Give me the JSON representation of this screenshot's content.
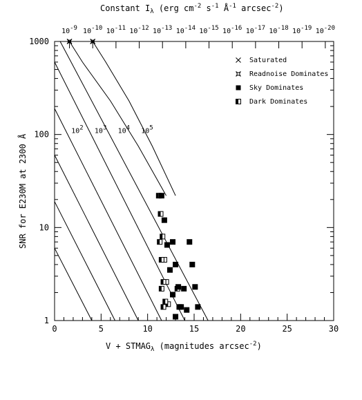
{
  "chart_data": {
    "type": "line",
    "title": "Constant I",
    "title_sub": "λ",
    "title_rest": " (erg cm",
    "title_exp1": "-2",
    "title_mid1": " s",
    "title_exp2": "-1",
    "title_mid2": " Å",
    "title_exp3": "-1",
    "title_end": " arcsec",
    "title_exp4": "-2",
    "title_close": ")",
    "xlabel": "V + STMAG",
    "xlabel_sub": "λ",
    "xlabel_rest": " (magnitudes arcsec",
    "xlabel_exp": "-2",
    "xlabel_close": ")",
    "ylabel": "SNR for E230M at 2300 Å",
    "xlim": [
      0,
      30
    ],
    "ylim": [
      1,
      1000
    ],
    "yscale": "log",
    "x_ticks": [
      "0",
      "5",
      "10",
      "15",
      "20",
      "25",
      "30"
    ],
    "y_ticks": [
      "1",
      "10",
      "100",
      "1000"
    ],
    "top_ticks": [
      {
        "base": "10",
        "exp": "-9"
      },
      {
        "base": "10",
        "exp": "-10"
      },
      {
        "base": "10",
        "exp": "-11"
      },
      {
        "base": "10",
        "exp": "-12"
      },
      {
        "base": "10",
        "exp": "-13"
      },
      {
        "base": "10",
        "exp": "-14"
      },
      {
        "base": "10",
        "exp": "-15"
      },
      {
        "base": "10",
        "exp": "-16"
      },
      {
        "base": "10",
        "exp": "-17"
      },
      {
        "base": "10",
        "exp": "-18"
      },
      {
        "base": "10",
        "exp": "-19"
      },
      {
        "base": "10",
        "exp": "-20"
      }
    ],
    "top_tick_mags": [
      1.6,
      4.1,
      6.6,
      9.1,
      11.6,
      14.1,
      16.6,
      19.1,
      21.6,
      24.1,
      26.6,
      29.1
    ],
    "curve_labels": [
      {
        "base": "10",
        "exp": "2",
        "x": 1.8,
        "y": 100
      },
      {
        "base": "10",
        "exp": "3",
        "x": 4.3,
        "y": 100
      },
      {
        "base": "10",
        "exp": "4",
        "x": 6.8,
        "y": 100
      },
      {
        "base": "10",
        "exp": "5",
        "x": 9.3,
        "y": 100
      }
    ],
    "series": [
      {
        "x": [
          0,
          4.0
        ],
        "y": [
          6.0,
          1.0
        ],
        "style": "line"
      },
      {
        "x": [
          0,
          6.5
        ],
        "y": [
          19,
          1.0
        ],
        "style": "line"
      },
      {
        "x": [
          0,
          9.0
        ],
        "y": [
          60,
          1.0
        ],
        "style": "line"
      },
      {
        "x": [
          0,
          11.5
        ],
        "y": [
          190,
          1.0
        ],
        "style": "line"
      },
      {
        "x": [
          0,
          14.0
        ],
        "y": [
          600,
          1.0
        ],
        "style": "line"
      },
      {
        "x": [
          0.6,
          16.5
        ],
        "y": [
          1000,
          1.0
        ],
        "style": "line"
      },
      {
        "x": [
          1.6,
          3.0,
          6.0,
          9.0,
          12.0
        ],
        "y": [
          1000,
          600,
          230,
          75,
          22
        ],
        "style": "line"
      },
      {
        "x": [
          4.1,
          5.5,
          8.0,
          10.5,
          13.0
        ],
        "y": [
          1000,
          600,
          230,
          75,
          22
        ],
        "style": "line"
      }
    ],
    "markers": {
      "saturated": [
        [
          1.6,
          1000
        ],
        [
          4.1,
          1000
        ]
      ],
      "readnoise": [
        [
          1.6,
          1000
        ],
        [
          4.1,
          1000
        ]
      ],
      "sky_dominates": [
        [
          11.5,
          22
        ],
        [
          11.8,
          12
        ],
        [
          12.1,
          6.5
        ],
        [
          12.4,
          3.5
        ],
        [
          12.7,
          1.9
        ],
        [
          13.0,
          1.1
        ],
        [
          12.7,
          7.0
        ],
        [
          13.0,
          4.0
        ],
        [
          13.3,
          2.3
        ],
        [
          13.6,
          1.4
        ],
        [
          13.9,
          2.2
        ],
        [
          14.2,
          1.3
        ],
        [
          14.5,
          7.0
        ],
        [
          14.8,
          4.0
        ],
        [
          15.1,
          2.3
        ],
        [
          15.4,
          1.4
        ]
      ],
      "dark_dominates": [
        [
          11.2,
          22
        ],
        [
          11.4,
          14
        ],
        [
          11.6,
          8.0
        ],
        [
          11.8,
          4.5
        ],
        [
          12.0,
          2.6
        ],
        [
          12.2,
          1.5
        ],
        [
          11.3,
          7.0
        ],
        [
          11.5,
          4.5
        ],
        [
          11.7,
          2.6
        ],
        [
          11.9,
          1.6
        ],
        [
          11.5,
          2.2
        ],
        [
          11.7,
          1.4
        ],
        [
          13.2,
          2.2
        ],
        [
          13.4,
          1.4
        ]
      ]
    },
    "legend": {
      "position": "top-right",
      "items": [
        {
          "label": "Saturated",
          "symbol": "cross"
        },
        {
          "label": "Readnoise Dominates",
          "symbol": "star"
        },
        {
          "label": "Sky Dominates",
          "symbol": "filled-square"
        },
        {
          "label": "Dark Dominates",
          "symbol": "half-square"
        }
      ]
    },
    "grid": false
  }
}
